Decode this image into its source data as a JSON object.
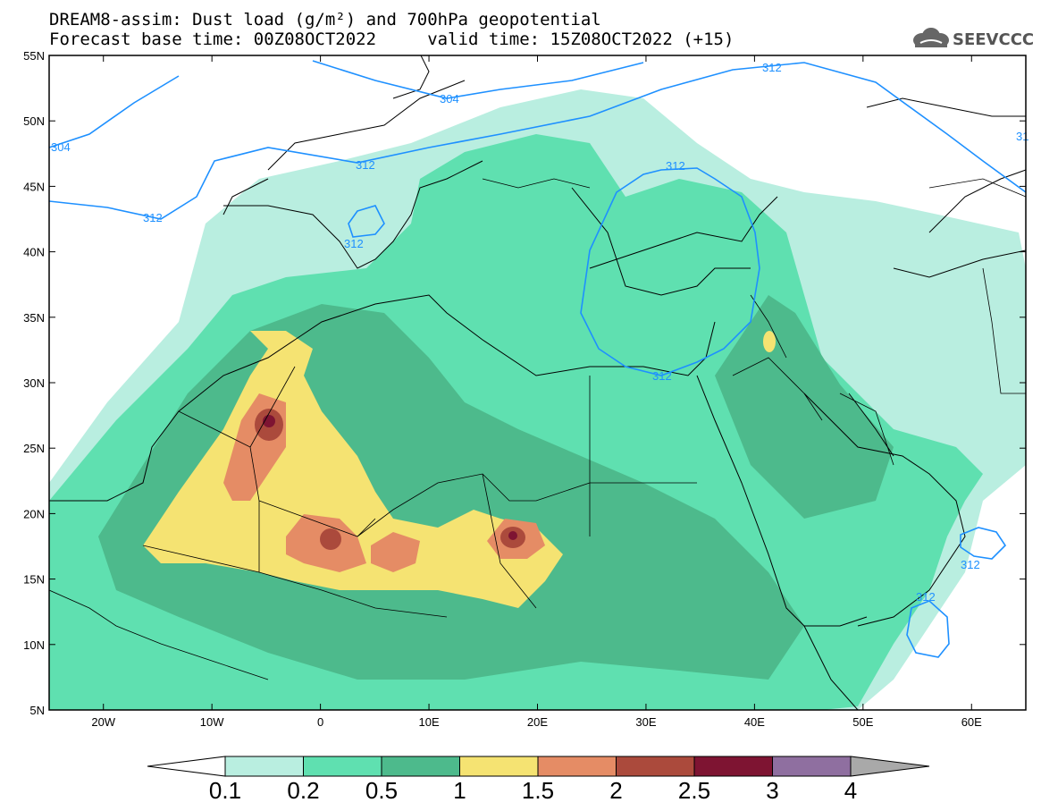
{
  "header": {
    "title_line1": "DREAM8-assim: Dust load (g/m²) and 700hPa geopotential",
    "title_line2": "Forecast base time: 00Z08OCT2022     valid time: 15Z08OCT2022 (+15)",
    "logo_text": "SEEVCCC"
  },
  "map": {
    "lat_labels": [
      "55N",
      "50N",
      "45N",
      "40N",
      "35N",
      "30N",
      "25N",
      "20N",
      "15N",
      "10N",
      "5N"
    ],
    "lon_labels": [
      "20W",
      "10W",
      "0",
      "10E",
      "20E",
      "30E",
      "40E",
      "50E",
      "60E"
    ],
    "contour_labels": [
      "304",
      "304",
      "312",
      "312",
      "312",
      "312",
      "312",
      "312",
      "312",
      "312",
      "31"
    ]
  },
  "colorbar": {
    "labels": [
      "0.1",
      "0.2",
      "0.5",
      "1",
      "1.5",
      "2",
      "2.5",
      "3",
      "4"
    ],
    "colors": [
      "#b9eee0",
      "#5fe0b0",
      "#4dba8c",
      "#f5e372",
      "#e58c65",
      "#ab4a3c",
      "#7e1432",
      "#8f6fa0"
    ],
    "under_color": "#ffffff",
    "over_color": "#a9a9a9"
  },
  "chart_data": {
    "type": "heatmap",
    "title": "DREAM8-assim: Dust load (g/m²) and 700hPa geopotential",
    "xlim": [
      -25,
      65
    ],
    "ylim": [
      5,
      55
    ],
    "levels": [
      0.1,
      0.2,
      0.5,
      1,
      1.5,
      2,
      2.5,
      3,
      4
    ],
    "contour_field": "700hPa geopotential",
    "contour_values": [
      304,
      312
    ]
  }
}
